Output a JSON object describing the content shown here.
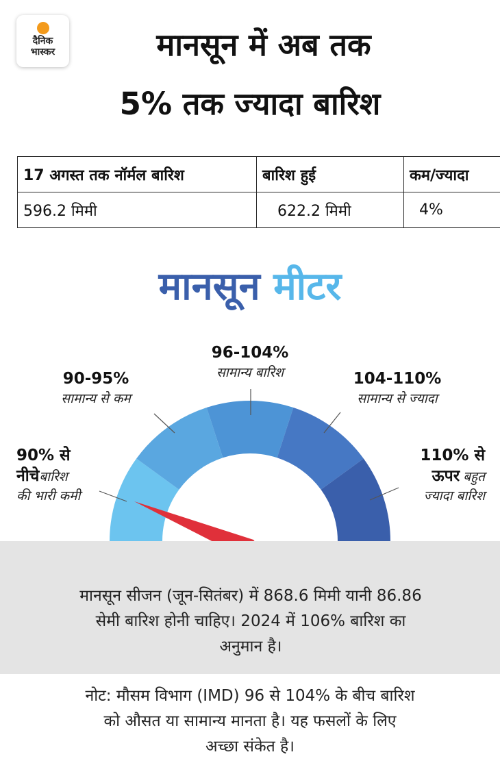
{
  "logo": {
    "line1": "दैनिक",
    "line2": "भास्कर",
    "sun_color": "#f39a1b"
  },
  "headline": {
    "line1": "मानसून में अब तक",
    "line2": "5% तक ज्यादा बारिश"
  },
  "table": {
    "headers": [
      "17 अगस्त तक नॉर्मल बारिश",
      "बारिश हुई",
      "कम/ज्यादा"
    ],
    "values": [
      "596.2 मिमी",
      "622.2 मिमी",
      "4%"
    ]
  },
  "meter": {
    "title_part1": "मानसून",
    "title_part2": "मीटर",
    "title_color1": "#3a5fab",
    "title_color2": "#57b7ea",
    "needle_color": "#e0303a",
    "segments": [
      {
        "range": "90% से",
        "range_line2": "नीचे",
        "desc_inline": "बारिश",
        "desc": "की भारी कमी",
        "color": "#6cc4ef"
      },
      {
        "range": "90-95%",
        "desc": "सामान्य से कम",
        "color": "#5aa7e0"
      },
      {
        "range": "96-104%",
        "desc": "सामान्य बारिश",
        "color": "#4d94d6"
      },
      {
        "range": "104-110%",
        "desc": "सामान्य से ज्यादा",
        "color": "#4678c4"
      },
      {
        "range": "110% से",
        "range_line2": "ऊपर",
        "desc_inline": "बहुत",
        "desc": "ज्यादा बारिश",
        "color": "#3a5fab"
      }
    ]
  },
  "info": {
    "line1": "मानसून सीजन (जून-सितंबर) में 868.6 मिमी यानी 86.86",
    "line2": "सेमी बारिश होनी चाहिए। 2024 में 106% बारिश का",
    "line3": "अनुमान है।"
  },
  "note": {
    "line1": "नोट: मौसम विभाग (IMD) 96 से 104% के बीच बारिश",
    "line2": "को औसत या सामान्य मानता है। यह फसलों के लिए",
    "line3": "अच्छा संकेत है।"
  }
}
